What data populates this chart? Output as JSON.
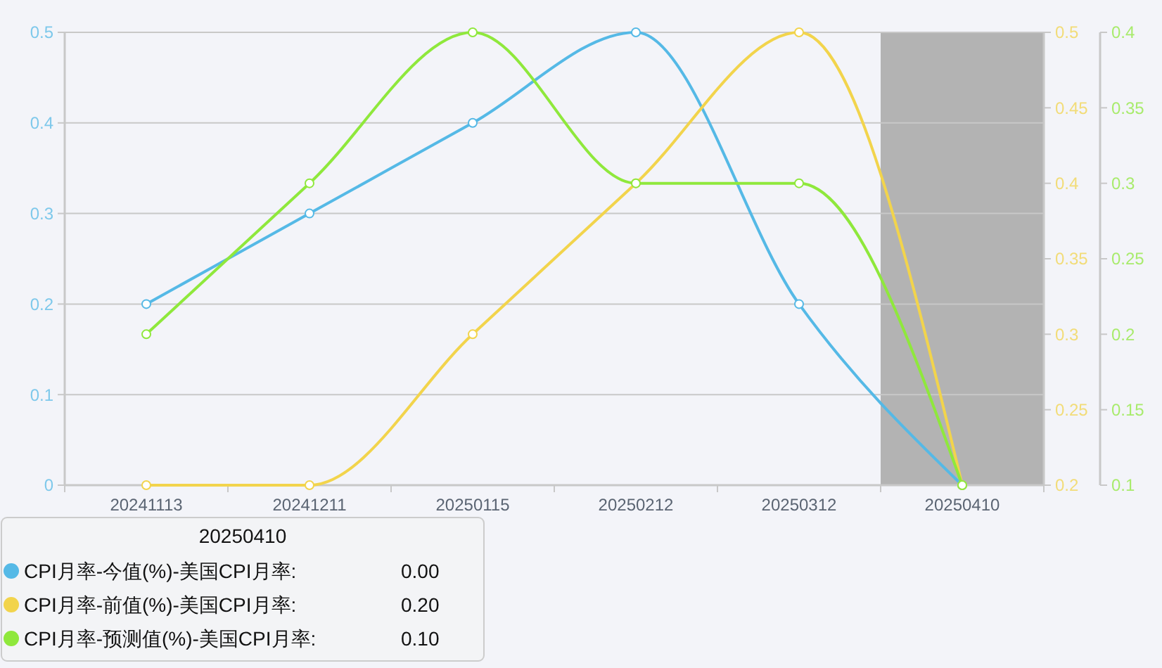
{
  "chart_data": {
    "type": "line",
    "categories": [
      "20241113",
      "20241211",
      "20250115",
      "20250212",
      "20250312",
      "20250410"
    ],
    "series": [
      {
        "name": "CPI月率-今值(%)-美国CPI月率:",
        "color": "#55b9e6",
        "values": [
          0.2,
          0.3,
          0.4,
          0.5,
          0.2,
          0.0
        ]
      },
      {
        "name": "CPI月率-前值(%)-美国CPI月率:",
        "color": "#f2d44c",
        "axis": "y2",
        "values": [
          0.2,
          0.2,
          0.3,
          0.4,
          0.5,
          0.2
        ]
      },
      {
        "name": "CPI月率-预测值(%)-美国CPI月率:",
        "color": "#8fe83c",
        "axis": "y3",
        "values": [
          0.2,
          0.3,
          0.4,
          0.3,
          0.3,
          0.1
        ]
      }
    ],
    "ylim": [
      0,
      0.5
    ],
    "yticks": [
      0,
      0.1,
      0.2,
      0.3,
      0.4,
      0.5
    ],
    "y2lim": [
      0.2,
      0.5
    ],
    "y2ticks": [
      0.2,
      0.25,
      0.3,
      0.35,
      0.4,
      0.45,
      0.5
    ],
    "y3lim": [
      0.1,
      0.4
    ],
    "y3ticks": [
      0.1,
      0.15,
      0.2,
      0.25,
      0.3,
      0.35,
      0.4
    ],
    "grid": "y",
    "legend": "bottom left",
    "legend_title": "20250410",
    "annotations": [
      "0.00",
      "0.20",
      "0.10"
    ],
    "marker": "circle",
    "bands": [
      {
        "axis": "x",
        "from": "20250410",
        "to": "20250410",
        "color": "#b3b3b3"
      }
    ]
  }
}
